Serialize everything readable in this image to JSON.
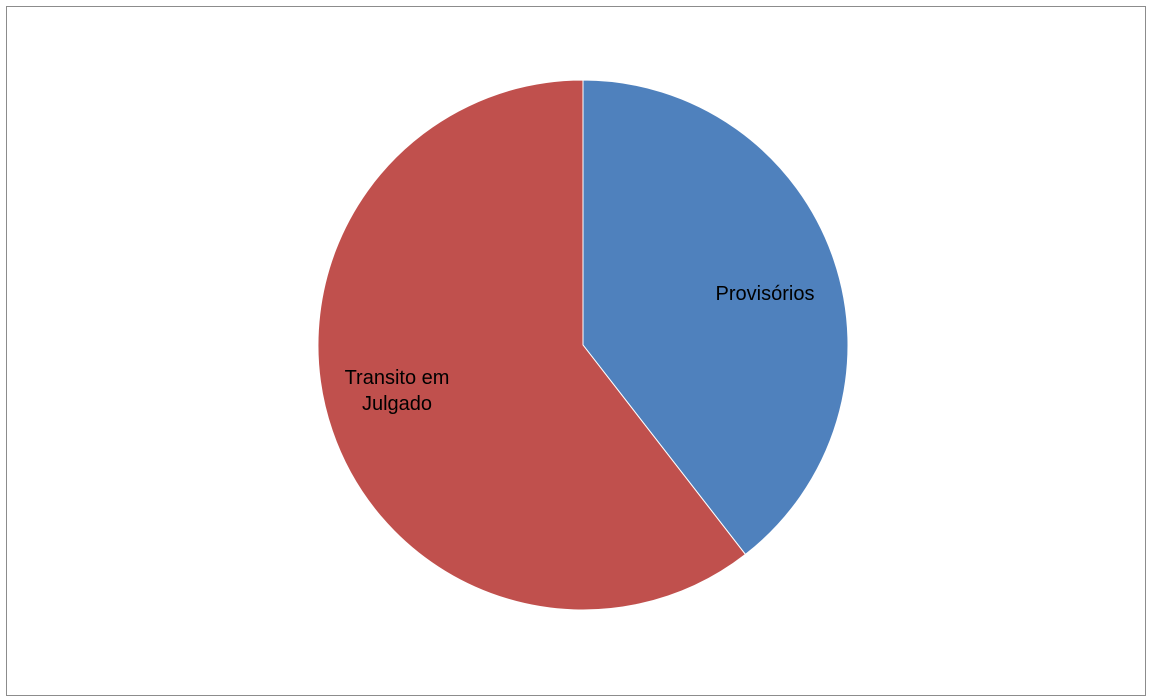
{
  "chart_data": {
    "type": "pie",
    "categories": [
      "Provisórios",
      "Transito em Julgado"
    ],
    "values": [
      39.5,
      60.5
    ],
    "colors": [
      "#4f81bd",
      "#c0504d"
    ],
    "labels": [
      {
        "lines": [
          "Provisórios"
        ]
      },
      {
        "lines": [
          "Transito em",
          "Julgado"
        ]
      }
    ],
    "start_angle_deg": 0,
    "direction": "clockwise",
    "legend": "none",
    "data_labels": "category-inside"
  }
}
